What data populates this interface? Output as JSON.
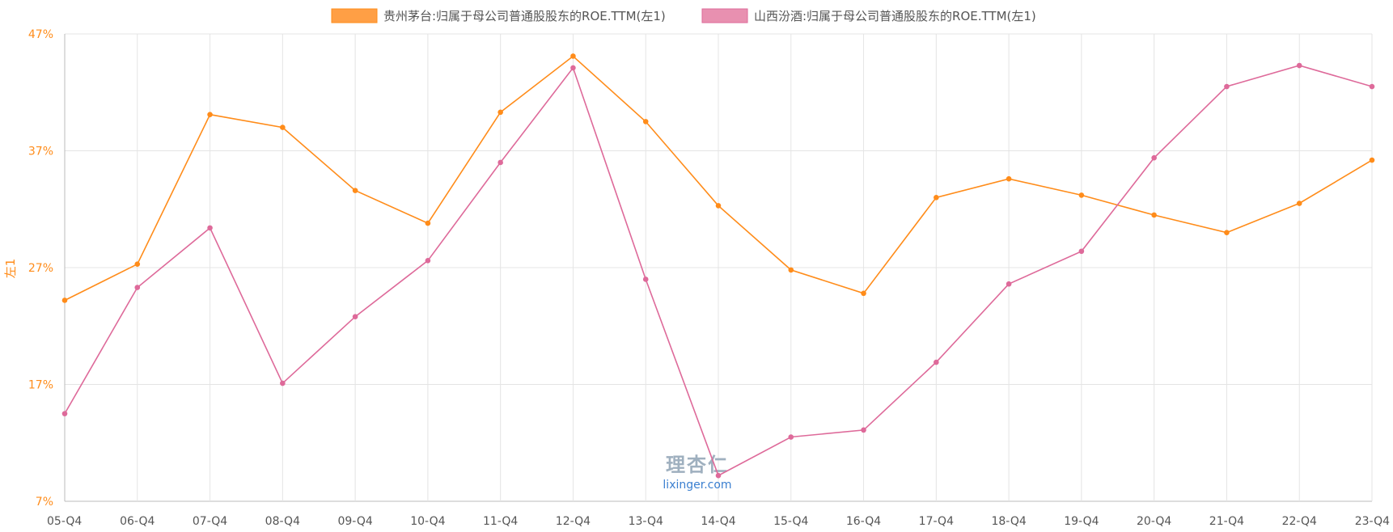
{
  "chart_data": {
    "type": "line",
    "categories": [
      "05-Q4",
      "06-Q4",
      "07-Q4",
      "08-Q4",
      "09-Q4",
      "10-Q4",
      "11-Q4",
      "12-Q4",
      "13-Q4",
      "14-Q4",
      "15-Q4",
      "16-Q4",
      "17-Q4",
      "18-Q4",
      "19-Q4",
      "20-Q4",
      "21-Q4",
      "22-Q4",
      "23-Q4"
    ],
    "series": [
      {
        "name": "贵州茅台:归属于母公司普通股股东的ROE.TTM(左1)",
        "color": "#ff8c1a",
        "legend_fill": "#ff9f45",
        "values": [
          24.2,
          27.3,
          40.1,
          39.0,
          33.6,
          30.8,
          40.3,
          45.1,
          39.5,
          32.3,
          26.8,
          24.8,
          33.0,
          34.6,
          33.2,
          31.5,
          30.0,
          32.5,
          36.2
        ]
      },
      {
        "name": "山西汾酒:归属于母公司普通股股东的ROE.TTM(左1)",
        "color": "#de6a9a",
        "legend_fill": "#e890b0",
        "values": [
          14.5,
          25.3,
          30.4,
          17.1,
          22.8,
          27.6,
          36.0,
          44.1,
          26.0,
          9.2,
          12.5,
          13.1,
          18.9,
          25.6,
          28.4,
          36.4,
          42.5,
          44.3,
          42.5
        ]
      }
    ],
    "y_ticks": [
      "47%",
      "37%",
      "27%",
      "17%",
      "7%"
    ],
    "ylim": [
      7,
      47
    ],
    "ylabel": "左1",
    "xlabel": "",
    "grid": true,
    "legend": "top-center"
  },
  "watermark": {
    "logo_text": "理杏仁",
    "url_text": "lixinger.com"
  }
}
